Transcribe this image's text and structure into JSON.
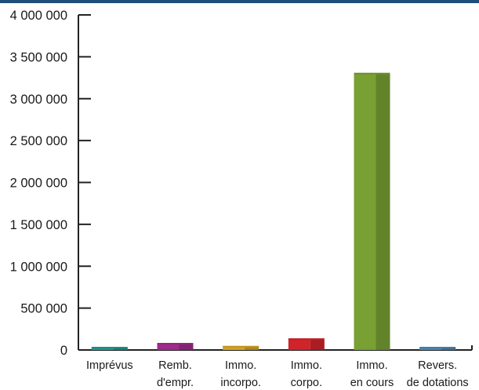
{
  "chart_data": {
    "type": "bar",
    "categories": [
      [
        "Imprévus"
      ],
      [
        "Remb.",
        "d'empr."
      ],
      [
        "Immo.",
        "incorpo."
      ],
      [
        "Immo.",
        "corpo."
      ],
      [
        "Immo.",
        "en cours"
      ],
      [
        "Revers.",
        "de dotations"
      ]
    ],
    "values": [
      15000,
      75000,
      40000,
      130000,
      3300000,
      15000
    ],
    "colors": [
      "#1e9a92",
      "#a12a8c",
      "#d4a321",
      "#d0232a",
      "#78a033",
      "#4a88b5"
    ],
    "ylim": [
      0,
      4000000
    ],
    "yticks": [
      0,
      500000,
      1000000,
      1500000,
      2000000,
      2500000,
      3000000,
      3500000,
      4000000
    ],
    "ytick_labels": [
      "0",
      "500 000",
      "1 000 000",
      "1 500 000",
      "2 000 000",
      "2 500 000",
      "3 000 000",
      "3 500 000",
      "4 000 000"
    ],
    "title": "",
    "xlabel": "",
    "ylabel": "",
    "grid": false,
    "legend": "none"
  }
}
